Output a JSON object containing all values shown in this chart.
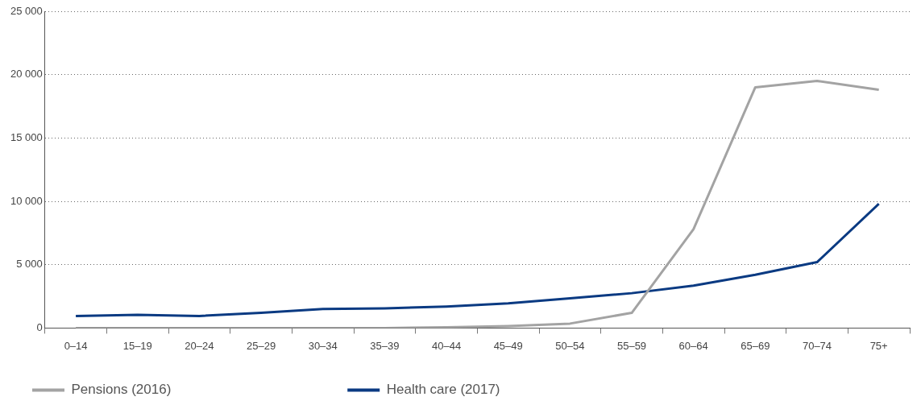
{
  "chart_data": {
    "type": "line",
    "categories": [
      "0–14",
      "15–19",
      "20–24",
      "25–29",
      "30–34",
      "35–39",
      "40–44",
      "45–49",
      "50–54",
      "55–59",
      "60–64",
      "65–69",
      "70–74",
      "75+"
    ],
    "series": [
      {
        "name": "Pensions (2016)",
        "color": "#a3a3a3",
        "values": [
          0,
          0,
          0,
          0,
          0,
          0,
          50,
          150,
          350,
          1200,
          7800,
          19000,
          19500,
          18800
        ]
      },
      {
        "name": "Health care (2017)",
        "color": "#0a3a82",
        "values": [
          950,
          1050,
          950,
          1200,
          1500,
          1550,
          1700,
          1950,
          2350,
          2750,
          3350,
          4200,
          5200,
          9800
        ]
      }
    ],
    "ylim": [
      0,
      25000
    ],
    "yticks": [
      {
        "value": 0,
        "label": "0"
      },
      {
        "value": 5000,
        "label": "5 000"
      },
      {
        "value": 10000,
        "label": "10 000"
      },
      {
        "value": 15000,
        "label": "15 000"
      },
      {
        "value": 20000,
        "label": "20 000"
      },
      {
        "value": 25000,
        "label": "25 000"
      }
    ],
    "grid": "y",
    "legend": "bottom left",
    "marker": "none",
    "line_style": "solid"
  }
}
